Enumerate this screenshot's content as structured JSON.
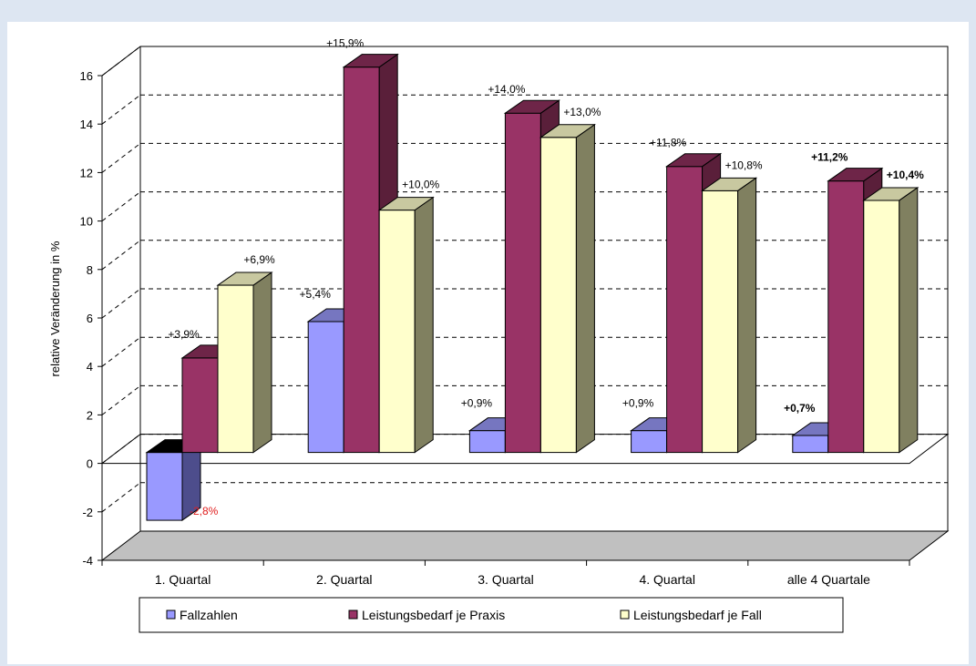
{
  "chart_data": {
    "type": "bar",
    "ylabel": "relative Veränderung in %",
    "ylim": [
      -4,
      16
    ],
    "yticks": [
      -4,
      -2,
      0,
      2,
      4,
      6,
      8,
      10,
      12,
      14,
      16
    ],
    "ytick_labels": [
      "-4",
      "-2",
      "0",
      "2",
      "4",
      "6",
      "8",
      "10",
      "12",
      "14",
      "16"
    ],
    "categories": [
      "1. Quartal",
      "2. Quartal",
      "3. Quartal",
      "4. Quartal",
      "alle 4 Quartale"
    ],
    "grid": true,
    "three_d": true,
    "legend_position": "bottom",
    "series": [
      {
        "name": "Fallzahlen",
        "color": "#9999ff",
        "values": [
          -2.8,
          5.4,
          0.9,
          0.9,
          0.7
        ],
        "labels": [
          "-2,8%",
          "+5,4%",
          "+0,9%",
          "+0,9%",
          "+0,7%"
        ]
      },
      {
        "name": "Leistungsbedarf je Praxis",
        "color": "#993366",
        "values": [
          3.9,
          15.9,
          14.0,
          11.8,
          11.2
        ],
        "labels": [
          "+3,9%",
          "+15,9%",
          "+14,0%",
          "+11,8%",
          "+11,2%"
        ]
      },
      {
        "name": "Leistungsbedarf je Fall",
        "color": "#ffffcc",
        "values": [
          6.9,
          10.0,
          13.0,
          10.8,
          10.4
        ],
        "labels": [
          "+6,9%",
          "+10,0%",
          "+13,0%",
          "+10,8%",
          "+10,4%"
        ]
      }
    ]
  }
}
